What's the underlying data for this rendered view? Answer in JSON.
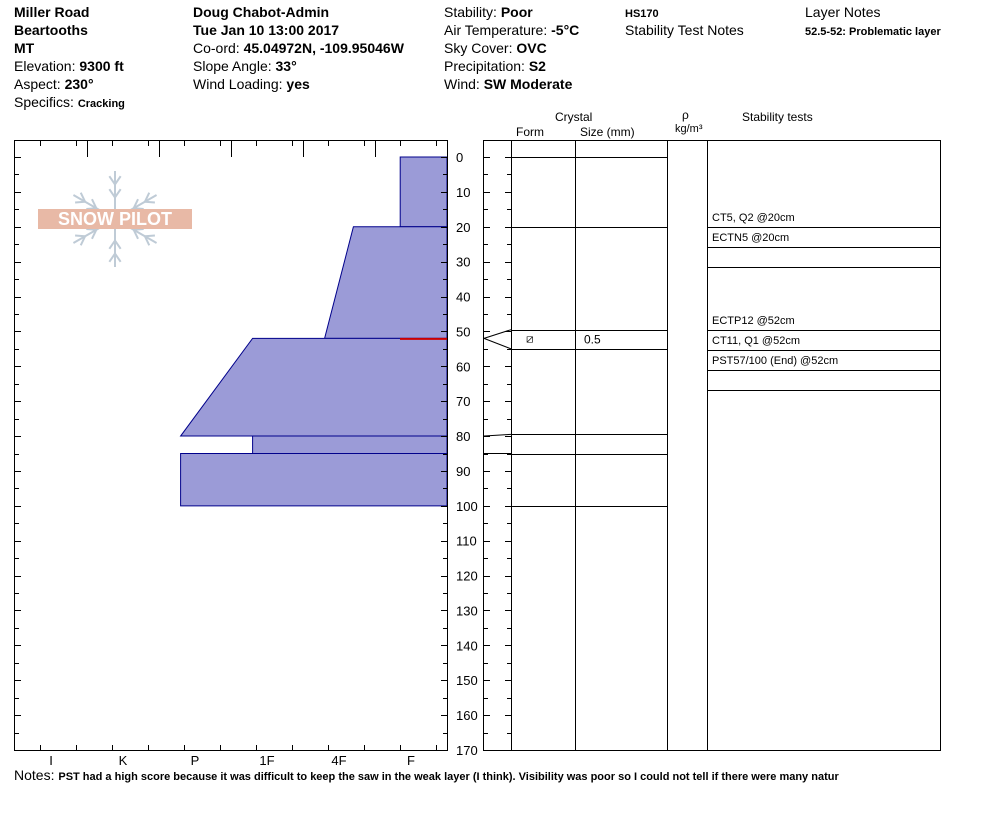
{
  "header": {
    "location": "Miller Road",
    "range": "Beartooths",
    "state": "MT",
    "elevation_label": "Elevation: ",
    "elevation_value": "9300 ft",
    "aspect_label": "Aspect: ",
    "aspect_value": "230°",
    "specifics_label": "Specifics: ",
    "specifics_value": "Cracking",
    "observer": "Doug Chabot-Admin",
    "datetime": "Tue Jan 10 13:00 2017",
    "coord_label": "Co-ord: ",
    "coord_value": "45.04972N, -109.95046W",
    "slope_label": "Slope Angle: ",
    "slope_value": "33°",
    "wind_loading_label": "Wind Loading: ",
    "wind_loading_value": "yes",
    "stability_label": "Stability: ",
    "stability_value": "Poor",
    "air_temp_label": "Air Temperature: ",
    "air_temp_value": "-5°C",
    "sky_label": "Sky Cover: ",
    "sky_value": "OVC",
    "precip_label": "Precipitation: ",
    "precip_value": "S2",
    "wind_label": "Wind: ",
    "wind_value": "SW Moderate",
    "hs": "HS170",
    "stability_test_notes": "Stability Test Notes",
    "layer_notes_title": "Layer Notes",
    "layer_note": "52.5-52: Problematic layer"
  },
  "columns": {
    "crystal": "Crystal",
    "form": "Form",
    "size": "Size (mm)",
    "rho": "ρ",
    "density_unit": "kg/m³",
    "stability_tests": "Stability tests"
  },
  "logo_text": "SNOW PILOT",
  "notes_label": "Notes:",
  "notes_text": "PST had a high score because it was difficult to keep the saw in the weak layer (I think). Visibility was poor so I could not tell if there were many natur",
  "chart_data": {
    "type": "snow-profile",
    "depth_unit": "cm",
    "depth_range": [
      0,
      170
    ],
    "depth_ticks": [
      0,
      10,
      20,
      30,
      40,
      50,
      60,
      70,
      80,
      90,
      100,
      110,
      120,
      130,
      140,
      150,
      160,
      170
    ],
    "hardness_labels": [
      "I",
      "K",
      "P",
      "1F",
      "4F",
      "F"
    ],
    "hardness_profile": [
      {
        "top": 0,
        "bottom": 20,
        "hardness_top": 0.65,
        "hardness_bottom": 0.65
      },
      {
        "top": 20,
        "bottom": 52,
        "hardness_top": 1.3,
        "hardness_bottom": 1.7
      },
      {
        "top": 52,
        "bottom": 80,
        "hardness_top": 2.7,
        "hardness_bottom": 3.7
      },
      {
        "top": 80,
        "bottom": 85,
        "hardness_top": 2.7,
        "hardness_bottom": 2.7
      },
      {
        "top": 85,
        "bottom": 100,
        "hardness_top": 3.7,
        "hardness_bottom": 3.7
      }
    ],
    "weak_layer_depth": 52,
    "layer_boundaries": [
      0,
      20,
      49.5,
      55,
      79.5,
      85,
      100
    ],
    "crystals": [
      {
        "depth": 52,
        "form_symbol": "⧄",
        "size": "0.5"
      }
    ],
    "stability_tests": [
      {
        "label": "CT5, Q2 @20cm"
      },
      {
        "label": "ECTN5 @20cm"
      },
      {
        "label": "ECTP12 @52cm"
      },
      {
        "label": "CT11, Q1 @52cm"
      },
      {
        "label": "PST57/100 (End) @52cm"
      }
    ],
    "colors": {
      "layer_fill": "#9b9bd7",
      "layer_stroke": "#00008b",
      "weak_layer": "#cc0000",
      "logo": "#e8b9a6"
    }
  }
}
